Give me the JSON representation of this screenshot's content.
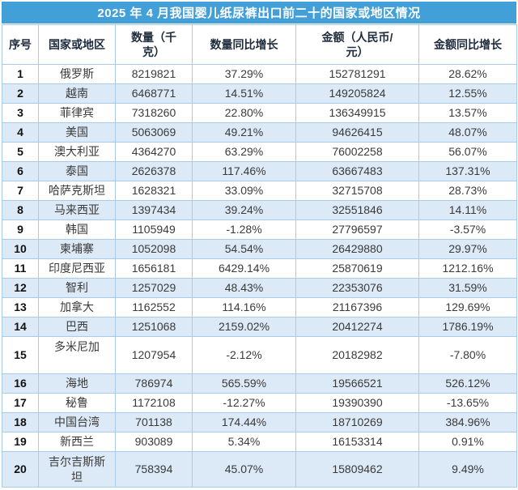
{
  "colors": {
    "title_bar_bg": "#429fd8",
    "title_text": "#ffffff",
    "band_row_bg": "#dce9f6",
    "grid_border": "#a9cbe8",
    "header_text": "#1e2b3c",
    "body_text": "#3a3a3a"
  },
  "chart_data": {
    "type": "table",
    "title": "2025 年 4 月我国婴儿纸尿裤出口前二十的国家或地区情况",
    "columns": [
      "序号",
      "国家或地区",
      "数量（千\n克）",
      "数量同比增长",
      "金额（人民币/\n元）",
      "金额同比增长"
    ],
    "rows": [
      [
        "1",
        "俄罗斯",
        "8219821",
        "37.29%",
        "152781291",
        "28.62%"
      ],
      [
        "2",
        "越南",
        "6468771",
        "14.51%",
        "149205824",
        "12.55%"
      ],
      [
        "3",
        "菲律宾",
        "7318260",
        "22.80%",
        "136349915",
        "13.57%"
      ],
      [
        "4",
        "美国",
        "5063069",
        "49.21%",
        "94626415",
        "48.07%"
      ],
      [
        "5",
        "澳大利亚",
        "4364270",
        "63.29%",
        "76002258",
        "56.07%"
      ],
      [
        "6",
        "泰国",
        "2626378",
        "117.46%",
        "63667483",
        "137.31%"
      ],
      [
        "7",
        "哈萨克斯坦",
        "1628321",
        "33.09%",
        "32715708",
        "28.73%"
      ],
      [
        "8",
        "马来西亚",
        "1397434",
        "39.24%",
        "32551846",
        "14.11%"
      ],
      [
        "9",
        "韩国",
        "1105949",
        "-1.28%",
        "27796597",
        "-3.57%"
      ],
      [
        "10",
        "柬埔寨",
        "1052098",
        "54.54%",
        "26429880",
        "29.97%"
      ],
      [
        "11",
        "印度尼西亚",
        "1656181",
        "6429.14%",
        "25870619",
        "1212.16%"
      ],
      [
        "12",
        "智利",
        "1257029",
        "48.43%",
        "22353076",
        "31.59%"
      ],
      [
        "13",
        "加拿大",
        "1162552",
        "114.16%",
        "21167396",
        "129.69%"
      ],
      [
        "14",
        "巴西",
        "1251068",
        "2159.02%",
        "20412274",
        "1786.19%"
      ],
      [
        "15",
        "多米尼加",
        "1207954",
        "-2.12%",
        "20182982",
        "-7.80%"
      ],
      [
        "16",
        "海地",
        "786974",
        "565.59%",
        "19566521",
        "526.12%"
      ],
      [
        "17",
        "秘鲁",
        "1172108",
        "-12.27%",
        "19390390",
        "-13.65%"
      ],
      [
        "18",
        "中国台湾",
        "701138",
        "174.44%",
        "18710269",
        "384.96%"
      ],
      [
        "19",
        "新西兰",
        "903089",
        "5.34%",
        "16153314",
        "0.91%"
      ],
      [
        "20",
        "吉尔吉斯斯坦",
        "758394",
        "45.07%",
        "15809462",
        "9.49%"
      ]
    ]
  }
}
